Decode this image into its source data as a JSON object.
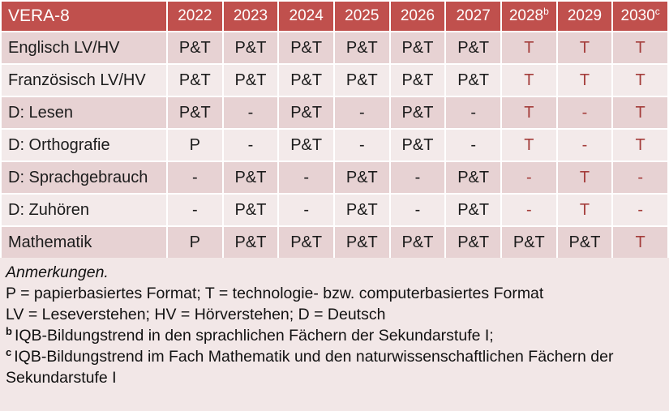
{
  "colors": {
    "header_bg": "#c0504d",
    "header_text": "#ffffff",
    "row_dark": "#e7d2d3",
    "row_light": "#f3eaea",
    "notes_bg": "#f2e7e7",
    "accent_text": "#a43d3b",
    "body_text": "#1c1c1c",
    "grid_gap": "#ffffff"
  },
  "table": {
    "title": "VERA-8",
    "years": [
      {
        "label": "2022",
        "sup": ""
      },
      {
        "label": "2023",
        "sup": ""
      },
      {
        "label": "2024",
        "sup": ""
      },
      {
        "label": "2025",
        "sup": ""
      },
      {
        "label": "2026",
        "sup": ""
      },
      {
        "label": "2027",
        "sup": ""
      },
      {
        "label": "2028",
        "sup": "b"
      },
      {
        "label": "2029",
        "sup": ""
      },
      {
        "label": "2030",
        "sup": "c"
      }
    ],
    "rows": [
      {
        "label": "Englisch LV/HV",
        "values": [
          "P&T",
          "P&T",
          "P&T",
          "P&T",
          "P&T",
          "P&T",
          "T",
          "T",
          "T"
        ]
      },
      {
        "label": "Französisch LV/HV",
        "values": [
          "P&T",
          "P&T",
          "P&T",
          "P&T",
          "P&T",
          "P&T",
          "T",
          "T",
          "T"
        ]
      },
      {
        "label": "D: Lesen",
        "values": [
          "P&T",
          "-",
          "P&T",
          "-",
          "P&T",
          "-",
          "T",
          "-",
          "T"
        ]
      },
      {
        "label": "D: Orthografie",
        "values": [
          "P",
          "-",
          "P&T",
          "-",
          "P&T",
          "-",
          "T",
          "-",
          "T"
        ]
      },
      {
        "label": "D: Sprachgebrauch",
        "values": [
          "-",
          "P&T",
          "-",
          "P&T",
          "-",
          "P&T",
          "-",
          "T",
          "-"
        ]
      },
      {
        "label": "D: Zuhören",
        "values": [
          "-",
          "P&T",
          "-",
          "P&T",
          "-",
          "P&T",
          "-",
          "T",
          "-"
        ]
      },
      {
        "label": "Mathematik",
        "values": [
          "P",
          "P&T",
          "P&T",
          "P&T",
          "P&T",
          "P&T",
          "P&T",
          "P&T",
          "T"
        ]
      }
    ],
    "accent_from_column": 6
  },
  "notes": {
    "title": "Anmerkungen.",
    "lines": [
      {
        "sup": "",
        "text": "P = papierbasiertes Format; T = technologie- bzw. computerbasiertes Format"
      },
      {
        "sup": "",
        "text": "LV = Leseverstehen; HV = Hörverstehen; D = Deutsch"
      },
      {
        "sup": "b",
        "text": "IQB-Bildungstrend in den sprachlichen Fächern der Sekundarstufe I;"
      },
      {
        "sup": "c",
        "text": "IQB-Bildungstrend im Fach Mathematik und den naturwissenschaftlichen Fächern der Sekundarstufe I"
      }
    ]
  }
}
